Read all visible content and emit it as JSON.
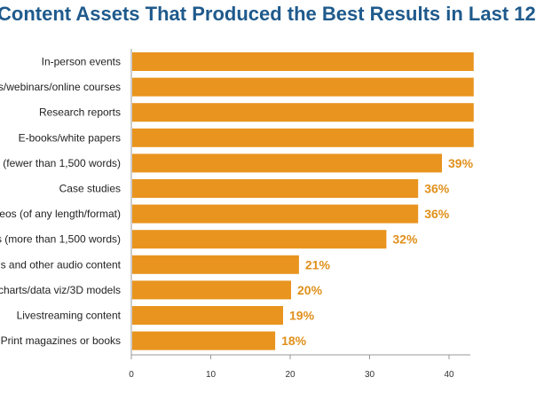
{
  "chart_data": {
    "type": "bar",
    "orientation": "horizontal",
    "title": "Content Assets That Produced the Best Results in Last 12",
    "categories": [
      "In-person events",
      "s/webinars/online courses",
      "Research reports",
      "E-books/white papers",
      "s (fewer than 1,500 words)",
      "Case studies",
      "eos (of any length/format)",
      "s (more than 1,500 words)",
      "s and other audio content",
      "charts/data viz/3D models",
      "Livestreaming content",
      "Print magazines or books"
    ],
    "values": [
      43,
      43,
      43,
      43,
      39,
      36,
      36,
      32,
      21,
      20,
      19,
      18
    ],
    "value_labels": [
      "",
      "",
      "",
      "",
      "39%",
      "36%",
      "36%",
      "32%",
      "21%",
      "20%",
      "19%",
      "18%"
    ],
    "x_ticks": [
      0,
      10,
      20,
      30,
      40
    ],
    "xlim": [
      0,
      43
    ],
    "xlabel": "",
    "ylabel": "",
    "grid": false,
    "legend": "none",
    "colors": {
      "bar": "#e8941f",
      "value_label": "#e0901c",
      "title": "#1f5a8c",
      "axis": "#999999"
    }
  }
}
